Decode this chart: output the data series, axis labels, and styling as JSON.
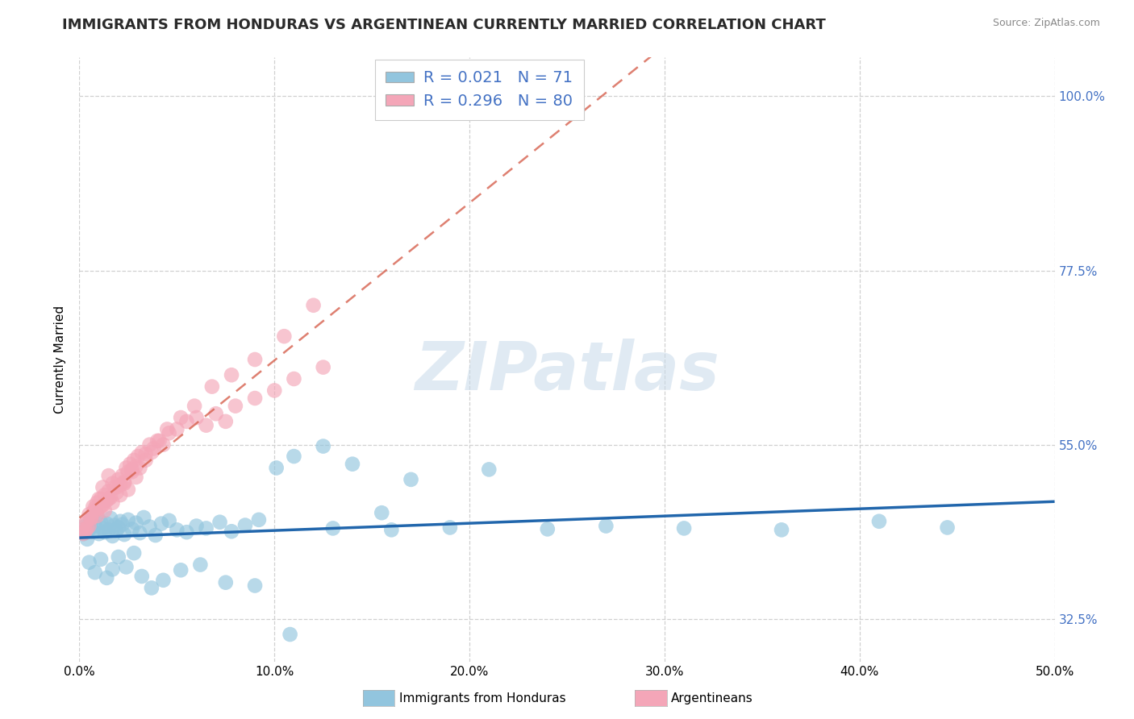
{
  "title": "IMMIGRANTS FROM HONDURAS VS ARGENTINEAN CURRENTLY MARRIED CORRELATION CHART",
  "source": "Source: ZipAtlas.com",
  "xlabel_blue": "Immigrants from Honduras",
  "xlabel_pink": "Argentineans",
  "ylabel": "Currently Married",
  "xlim": [
    0.0,
    50.0
  ],
  "ylim": [
    27.0,
    105.0
  ],
  "xticks": [
    0.0,
    10.0,
    20.0,
    30.0,
    40.0,
    50.0
  ],
  "yticks": [
    32.5,
    55.0,
    77.5,
    100.0
  ],
  "xticklabels": [
    "0.0%",
    "10.0%",
    "20.0%",
    "30.0%",
    "40.0%",
    "50.0%"
  ],
  "yticklabels": [
    "32.5%",
    "55.0%",
    "77.5%",
    "100.0%"
  ],
  "blue_color": "#92c5de",
  "pink_color": "#f4a6b8",
  "blue_line_color": "#2166ac",
  "pink_line_color": "#d6604d",
  "R_blue": 0.021,
  "N_blue": 71,
  "R_pink": 0.296,
  "N_pink": 80,
  "blue_scatter_x": [
    0.2,
    0.3,
    0.4,
    0.5,
    0.6,
    0.7,
    0.8,
    0.9,
    1.0,
    1.1,
    1.2,
    1.3,
    1.4,
    1.5,
    1.6,
    1.7,
    1.8,
    1.9,
    2.0,
    2.1,
    2.2,
    2.3,
    2.5,
    2.7,
    2.9,
    3.1,
    3.3,
    3.6,
    3.9,
    4.2,
    4.6,
    5.0,
    5.5,
    6.0,
    6.5,
    7.2,
    7.8,
    8.5,
    9.2,
    10.1,
    11.0,
    12.5,
    14.0,
    15.5,
    17.0,
    19.0,
    21.0,
    24.0,
    27.0,
    31.0,
    36.0,
    41.0,
    44.5,
    0.5,
    0.8,
    1.1,
    1.4,
    1.7,
    2.0,
    2.4,
    2.8,
    3.2,
    3.7,
    4.3,
    5.2,
    6.2,
    7.5,
    9.0,
    10.8,
    13.0,
    16.0
  ],
  "blue_scatter_y": [
    43.5,
    44.5,
    42.8,
    44.0,
    45.2,
    43.8,
    44.5,
    46.0,
    43.5,
    45.0,
    44.2,
    43.7,
    44.8,
    44.0,
    45.5,
    43.2,
    44.6,
    43.9,
    44.3,
    45.1,
    44.7,
    43.4,
    45.3,
    44.1,
    44.9,
    43.6,
    45.6,
    44.4,
    43.3,
    44.8,
    45.2,
    44.0,
    43.7,
    44.5,
    44.2,
    45.0,
    43.8,
    44.6,
    45.3,
    52.0,
    53.5,
    54.8,
    52.5,
    46.2,
    50.5,
    44.3,
    51.8,
    44.1,
    44.5,
    44.2,
    44.0,
    45.1,
    44.3,
    39.8,
    38.5,
    40.2,
    37.8,
    38.9,
    40.5,
    39.2,
    41.0,
    38.0,
    36.5,
    37.5,
    38.8,
    39.5,
    37.2,
    36.8,
    30.5,
    44.2,
    44.0
  ],
  "pink_scatter_x": [
    0.1,
    0.2,
    0.3,
    0.4,
    0.5,
    0.6,
    0.7,
    0.8,
    0.9,
    1.0,
    1.1,
    1.2,
    1.3,
    1.4,
    1.5,
    1.6,
    1.7,
    1.8,
    1.9,
    2.0,
    2.1,
    2.2,
    2.3,
    2.4,
    2.5,
    2.6,
    2.7,
    2.8,
    2.9,
    3.0,
    3.2,
    3.4,
    3.6,
    3.8,
    4.0,
    4.3,
    4.6,
    5.0,
    5.5,
    6.0,
    6.5,
    7.0,
    7.5,
    8.0,
    9.0,
    10.0,
    11.0,
    12.5,
    0.3,
    0.5,
    0.7,
    0.9,
    1.1,
    1.3,
    1.5,
    1.7,
    1.9,
    2.1,
    2.3,
    2.5,
    2.7,
    2.9,
    3.1,
    3.4,
    3.7,
    4.1,
    4.5,
    5.2,
    5.9,
    6.8,
    7.8,
    9.0,
    10.5,
    12.0,
    0.4,
    0.6,
    0.8,
    1.0,
    1.2,
    1.5
  ],
  "pink_scatter_y": [
    44.0,
    43.5,
    44.8,
    45.2,
    46.0,
    45.5,
    47.0,
    46.5,
    47.5,
    46.8,
    48.0,
    47.2,
    48.5,
    47.8,
    49.0,
    48.2,
    50.0,
    49.5,
    48.8,
    50.5,
    49.8,
    51.0,
    50.2,
    52.0,
    51.5,
    52.5,
    51.8,
    53.0,
    52.2,
    53.5,
    54.0,
    53.8,
    55.0,
    54.5,
    55.5,
    55.0,
    56.5,
    57.0,
    58.0,
    58.5,
    57.5,
    59.0,
    58.0,
    60.0,
    61.0,
    62.0,
    63.5,
    65.0,
    43.8,
    44.5,
    46.2,
    45.8,
    47.0,
    46.5,
    48.0,
    47.5,
    49.5,
    48.5,
    50.0,
    49.2,
    51.5,
    50.8,
    52.0,
    53.0,
    54.0,
    55.5,
    57.0,
    58.5,
    60.0,
    62.5,
    64.0,
    66.0,
    69.0,
    73.0,
    44.2,
    45.5,
    46.8,
    48.0,
    49.5,
    51.0
  ],
  "watermark": "ZIPatlas",
  "background_color": "#ffffff",
  "grid_color": "#d0d0d0",
  "title_fontsize": 13,
  "axis_label_fontsize": 11,
  "tick_fontsize": 11,
  "legend_fontsize": 14,
  "right_ytick_color": "#4472c4",
  "source_color": "#888888"
}
